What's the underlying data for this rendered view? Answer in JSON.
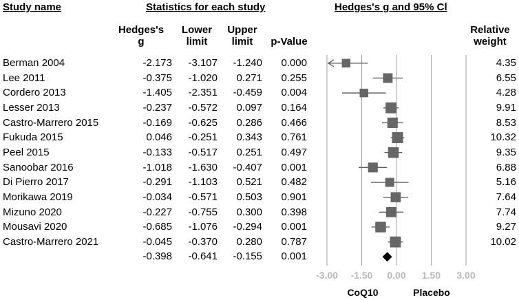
{
  "headers": {
    "study_name": "Study name",
    "statistics": "Statistics for each study",
    "ci": "Hedges's g and 95% Cl"
  },
  "columns": {
    "g_line1": "Hedges's",
    "g_line2": "g",
    "lower_line1": "Lower",
    "lower_line2": "limit",
    "upper_line1": "Upper",
    "upper_line2": "limit",
    "p": "p-Value",
    "weight_line1": "Relative",
    "weight_line2": "weight"
  },
  "chart_data": {
    "type": "forest",
    "xlim": [
      -3.0,
      3.0
    ],
    "ticks": [
      "-3.00",
      "-1.50",
      "0.00",
      "1.50",
      "3.00"
    ],
    "tick_values": [
      -3.0,
      -1.5,
      0.0,
      1.5,
      3.0
    ],
    "xlabel_left": "CoQ10",
    "xlabel_right": "Placebo",
    "studies": [
      {
        "name": "Berman 2004",
        "g": "-2.173",
        "lower": "-3.107",
        "upper": "-1.240",
        "p": "0.000",
        "weight": "4.35"
      },
      {
        "name": "Lee 2011",
        "g": "-0.375",
        "lower": "-1.020",
        "upper": "0.271",
        "p": "0.255",
        "weight": "6.55"
      },
      {
        "name": "Cordero 2013",
        "g": "-1.405",
        "lower": "-2.351",
        "upper": "-0.459",
        "p": "0.004",
        "weight": "4.28"
      },
      {
        "name": "Lesser 2013",
        "g": "-0.237",
        "lower": "-0.572",
        "upper": "0.097",
        "p": "0.164",
        "weight": "9.91"
      },
      {
        "name": "Castro-Marrero 2015",
        "g": "-0.169",
        "lower": "-0.625",
        "upper": "0.286",
        "p": "0.466",
        "weight": "8.53"
      },
      {
        "name": "Fukuda 2015",
        "g": "0.046",
        "lower": "-0.251",
        "upper": "0.343",
        "p": "0.761",
        "weight": "10.32"
      },
      {
        "name": "Peel 2015",
        "g": "-0.133",
        "lower": "-0.517",
        "upper": "0.251",
        "p": "0.497",
        "weight": "9.35"
      },
      {
        "name": "Sanoobar 2016",
        "g": "-1.018",
        "lower": "-1.630",
        "upper": "-0.407",
        "p": "0.001",
        "weight": "6.88"
      },
      {
        "name": "Di Pierro 2017",
        "g": "-0.291",
        "lower": "-1.103",
        "upper": "0.521",
        "p": "0.482",
        "weight": "5.16"
      },
      {
        "name": "Morikawa 2019",
        "g": "-0.034",
        "lower": "-0.571",
        "upper": "0.503",
        "p": "0.901",
        "weight": "7.64"
      },
      {
        "name": "Mizuno 2020",
        "g": "-0.227",
        "lower": "-0.755",
        "upper": "0.300",
        "p": "0.398",
        "weight": "7.74"
      },
      {
        "name": "Mousavi 2020",
        "g": "-0.685",
        "lower": "-1.076",
        "upper": "-0.294",
        "p": "0.001",
        "weight": "9.27"
      },
      {
        "name": "Castro-Marrero 2021",
        "g": "-0.045",
        "lower": "-0.370",
        "upper": "0.280",
        "p": "0.787",
        "weight": "10.02"
      }
    ],
    "summary": {
      "g": "-0.398",
      "lower": "-0.641",
      "upper": "-0.155",
      "p": "0.001"
    }
  }
}
